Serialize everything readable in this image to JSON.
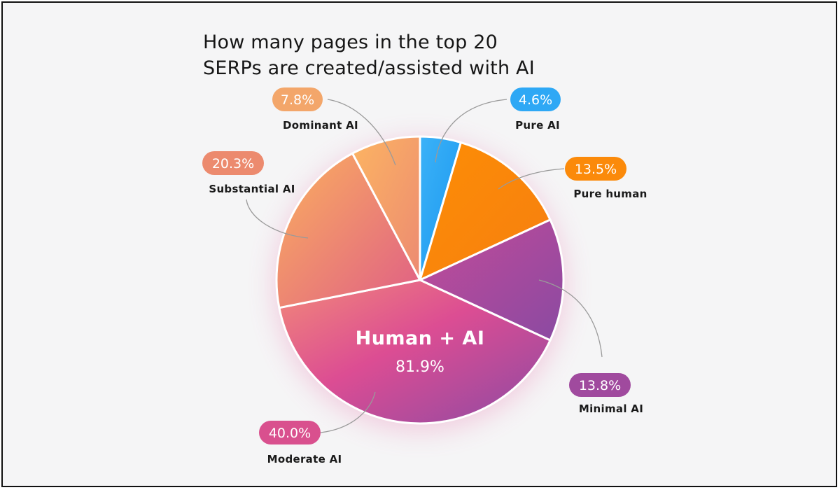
{
  "chart_data": {
    "type": "pie",
    "title": "How many pages in the top 20 SERPs are created/assisted with AI",
    "title_lines": [
      "How many pages in the top 20",
      "SERPs are created/assisted with AI"
    ],
    "slices": [
      {
        "label": "Pure AI",
        "value": 4.6,
        "display": "4.6%",
        "color": "#2ea8f5"
      },
      {
        "label": "Pure human",
        "value": 13.5,
        "display": "13.5%",
        "color": "#fb8a0a"
      },
      {
        "label": "Minimal AI",
        "value": 13.8,
        "display": "13.8%",
        "color": "#a04a9e"
      },
      {
        "label": "Moderate AI",
        "value": 40.0,
        "display": "40.0%",
        "color": "#d9508e"
      },
      {
        "label": "Substantial AI",
        "value": 20.3,
        "display": "20.3%",
        "color": "#ec8a6e"
      },
      {
        "label": "Dominant AI",
        "value": 7.8,
        "display": "7.8%",
        "color": "#f3a66a"
      }
    ],
    "center_label": {
      "title": "Human + AI",
      "value": "81.9%"
    }
  }
}
